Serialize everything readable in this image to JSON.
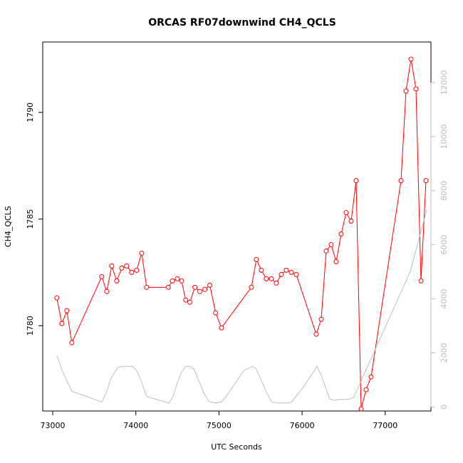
{
  "chart_data": {
    "type": "line",
    "title": "ORCAS RF07downwind CH4_QCLS",
    "xlabel": "UTC Seconds",
    "ylabel": "CH4_QCLS",
    "xlim": [
      72880,
      77550
    ],
    "ylim": [
      1776.0,
      1793.3
    ],
    "y2lim": [
      -150,
      13500
    ],
    "x_ticks": [
      73000,
      74000,
      75000,
      76000,
      77000
    ],
    "y_ticks": [
      1780,
      1785,
      1790
    ],
    "y2_ticks": [
      0,
      2000,
      4000,
      6000,
      8000,
      10000,
      12000
    ],
    "grid": false,
    "legend": "none",
    "colors": {
      "primary": "#ff0000",
      "secondary": "#bebebe",
      "axis": "#000000",
      "right_axis": "#bdbdbd"
    },
    "series": [
      {
        "axis": "left",
        "style": "line+points",
        "x": [
          73050,
          73110,
          73170,
          73230,
          73590,
          73650,
          73710,
          73770,
          73830,
          73890,
          73950,
          74010,
          74070,
          74130,
          74390,
          74440,
          74500,
          74550,
          74600,
          74650,
          74710,
          74770,
          74830,
          74890,
          74960,
          75030,
          75390,
          75450,
          75510,
          75570,
          75630,
          75690,
          75750,
          75810,
          75870,
          75930,
          76170,
          76230,
          76290,
          76350,
          76410,
          76470,
          76530,
          76590,
          76650,
          76710,
          76770,
          76830,
          77190,
          77250,
          77310,
          77370,
          77430,
          77490
        ],
        "y": [
          1781.3,
          1780.1,
          1780.7,
          1779.2,
          1782.3,
          1781.6,
          1782.8,
          1782.1,
          1782.7,
          1782.8,
          1782.5,
          1782.6,
          1783.4,
          1781.8,
          1781.8,
          1782.1,
          1782.2,
          1782.1,
          1781.2,
          1781.1,
          1781.8,
          1781.6,
          1781.7,
          1781.9,
          1780.6,
          1779.9,
          1781.8,
          1783.1,
          1782.6,
          1782.2,
          1782.2,
          1782.0,
          1782.4,
          1782.6,
          1782.5,
          1782.4,
          1779.6,
          1780.3,
          1783.5,
          1783.8,
          1783.0,
          1784.3,
          1785.3,
          1784.9,
          1786.8,
          1776.1,
          1777.0,
          1777.6,
          1786.8,
          1791.0,
          1792.5,
          1791.1,
          1782.1,
          1786.8
        ]
      },
      {
        "axis": "right",
        "style": "line",
        "x": [
          73050,
          73120,
          73230,
          73440,
          73590,
          73650,
          73700,
          73780,
          73840,
          73900,
          73960,
          74010,
          74060,
          74130,
          74400,
          74450,
          74500,
          74550,
          74600,
          74650,
          74700,
          74760,
          74820,
          74880,
          74960,
          75030,
          75100,
          75200,
          75300,
          75400,
          75440,
          75500,
          75570,
          75630,
          75700,
          75770,
          75850,
          75880,
          76030,
          76180,
          76240,
          76330,
          76390,
          76450,
          76510,
          76560,
          76620,
          77300,
          77500
        ],
        "y": [
          1900,
          1300,
          580,
          350,
          180,
          580,
          1050,
          1450,
          1500,
          1500,
          1500,
          1350,
          1000,
          380,
          150,
          400,
          900,
          1300,
          1500,
          1500,
          1400,
          950,
          500,
          200,
          150,
          180,
          450,
          900,
          1350,
          1500,
          1450,
          1050,
          550,
          200,
          150,
          150,
          150,
          200,
          800,
          1500,
          1100,
          300,
          250,
          280,
          280,
          280,
          350,
          5000,
          7300
        ]
      }
    ]
  }
}
